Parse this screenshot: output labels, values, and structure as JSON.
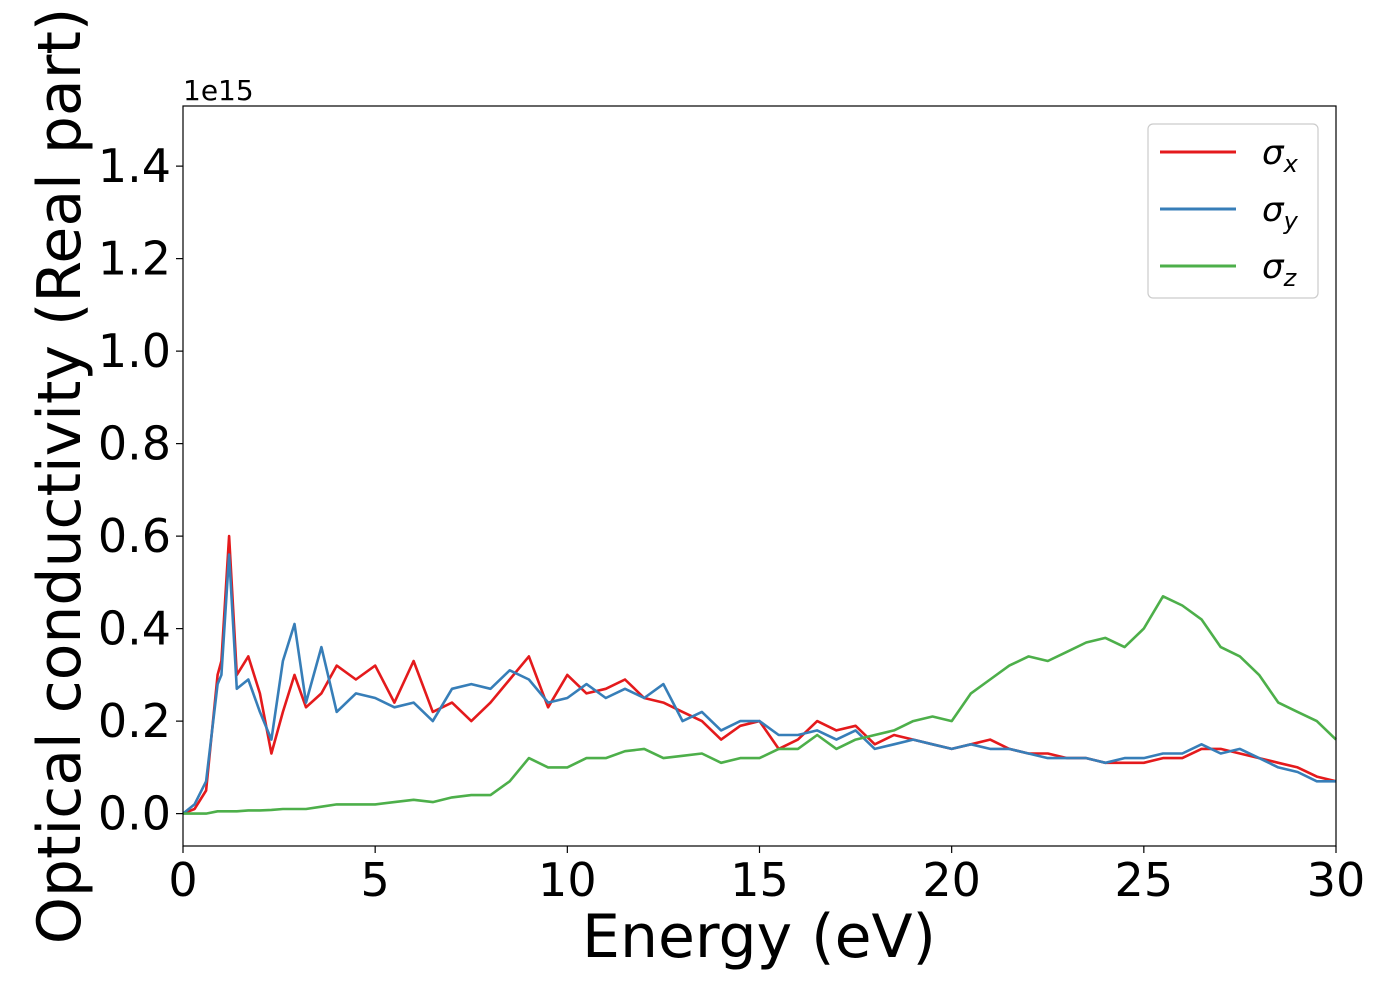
{
  "chart_data": {
    "type": "line",
    "title": "",
    "xlabel": "Energy (eV)",
    "ylabel": "Optical conductivity (Real part)",
    "y_offset_label": "1e15",
    "xlim": [
      0,
      30
    ],
    "ylim": [
      -0.07,
      1.53
    ],
    "x_ticks": [
      0,
      5,
      10,
      15,
      20,
      25,
      30
    ],
    "x_tick_labels": [
      "0",
      "5",
      "10",
      "15",
      "20",
      "25",
      "30"
    ],
    "y_ticks": [
      0.0,
      0.2,
      0.4,
      0.6,
      0.8,
      1.0,
      1.2,
      1.4
    ],
    "y_tick_labels": [
      "0.0",
      "0.2",
      "0.4",
      "0.6",
      "0.8",
      "1.0",
      "1.2",
      "1.4"
    ],
    "grid": false,
    "legend_position": "top-right",
    "x": [
      0,
      0.3,
      0.6,
      0.9,
      1.0,
      1.2,
      1.4,
      1.7,
      2.0,
      2.3,
      2.6,
      2.9,
      3.2,
      3.6,
      4.0,
      4.5,
      5.0,
      5.5,
      6.0,
      6.5,
      7.0,
      7.5,
      8.0,
      8.5,
      9.0,
      9.5,
      10.0,
      10.5,
      11.0,
      11.5,
      12.0,
      12.5,
      13.0,
      13.5,
      14.0,
      14.5,
      15.0,
      15.5,
      16.0,
      16.5,
      17.0,
      17.5,
      18.0,
      18.5,
      19.0,
      19.5,
      20.0,
      20.5,
      21.0,
      21.5,
      22.0,
      22.5,
      23.0,
      23.5,
      24.0,
      24.5,
      25.0,
      25.5,
      26.0,
      26.5,
      27.0,
      27.5,
      28.0,
      28.5,
      29.0,
      29.5,
      30.0
    ],
    "series": [
      {
        "name": "σx",
        "color": "#e41a1c",
        "values": [
          0.0,
          0.01,
          0.05,
          0.3,
          0.33,
          0.6,
          0.3,
          0.34,
          0.26,
          0.13,
          0.22,
          0.3,
          0.23,
          0.26,
          0.32,
          0.29,
          0.32,
          0.24,
          0.33,
          0.22,
          0.24,
          0.2,
          0.24,
          0.29,
          0.34,
          0.23,
          0.3,
          0.26,
          0.27,
          0.29,
          0.25,
          0.24,
          0.22,
          0.2,
          0.16,
          0.19,
          0.2,
          0.14,
          0.16,
          0.2,
          0.18,
          0.19,
          0.15,
          0.17,
          0.16,
          0.15,
          0.14,
          0.15,
          0.16,
          0.14,
          0.13,
          0.13,
          0.12,
          0.12,
          0.11,
          0.11,
          0.11,
          0.12,
          0.12,
          0.14,
          0.14,
          0.13,
          0.12,
          0.11,
          0.1,
          0.08,
          0.07
        ]
      },
      {
        "name": "σy",
        "color": "#377eb8",
        "values": [
          0.0,
          0.02,
          0.07,
          0.28,
          0.3,
          0.56,
          0.27,
          0.29,
          0.22,
          0.16,
          0.33,
          0.41,
          0.24,
          0.36,
          0.22,
          0.26,
          0.25,
          0.23,
          0.24,
          0.2,
          0.27,
          0.28,
          0.27,
          0.31,
          0.29,
          0.24,
          0.25,
          0.28,
          0.25,
          0.27,
          0.25,
          0.28,
          0.2,
          0.22,
          0.18,
          0.2,
          0.2,
          0.17,
          0.17,
          0.18,
          0.16,
          0.18,
          0.14,
          0.15,
          0.16,
          0.15,
          0.14,
          0.15,
          0.14,
          0.14,
          0.13,
          0.12,
          0.12,
          0.12,
          0.11,
          0.12,
          0.12,
          0.13,
          0.13,
          0.15,
          0.13,
          0.14,
          0.12,
          0.1,
          0.09,
          0.07,
          0.07
        ]
      },
      {
        "name": "σz",
        "color": "#4daf4a",
        "values": [
          0.0,
          0.0,
          0.0,
          0.005,
          0.005,
          0.005,
          0.005,
          0.007,
          0.007,
          0.008,
          0.01,
          0.01,
          0.01,
          0.015,
          0.02,
          0.02,
          0.02,
          0.025,
          0.03,
          0.025,
          0.035,
          0.04,
          0.04,
          0.07,
          0.12,
          0.1,
          0.1,
          0.12,
          0.12,
          0.135,
          0.14,
          0.12,
          0.125,
          0.13,
          0.11,
          0.12,
          0.12,
          0.14,
          0.14,
          0.17,
          0.14,
          0.16,
          0.17,
          0.18,
          0.2,
          0.21,
          0.2,
          0.26,
          0.29,
          0.32,
          0.34,
          0.33,
          0.35,
          0.37,
          0.38,
          0.36,
          0.4,
          0.47,
          0.45,
          0.42,
          0.36,
          0.34,
          0.3,
          0.24,
          0.22,
          0.2,
          0.16
        ]
      }
    ]
  }
}
